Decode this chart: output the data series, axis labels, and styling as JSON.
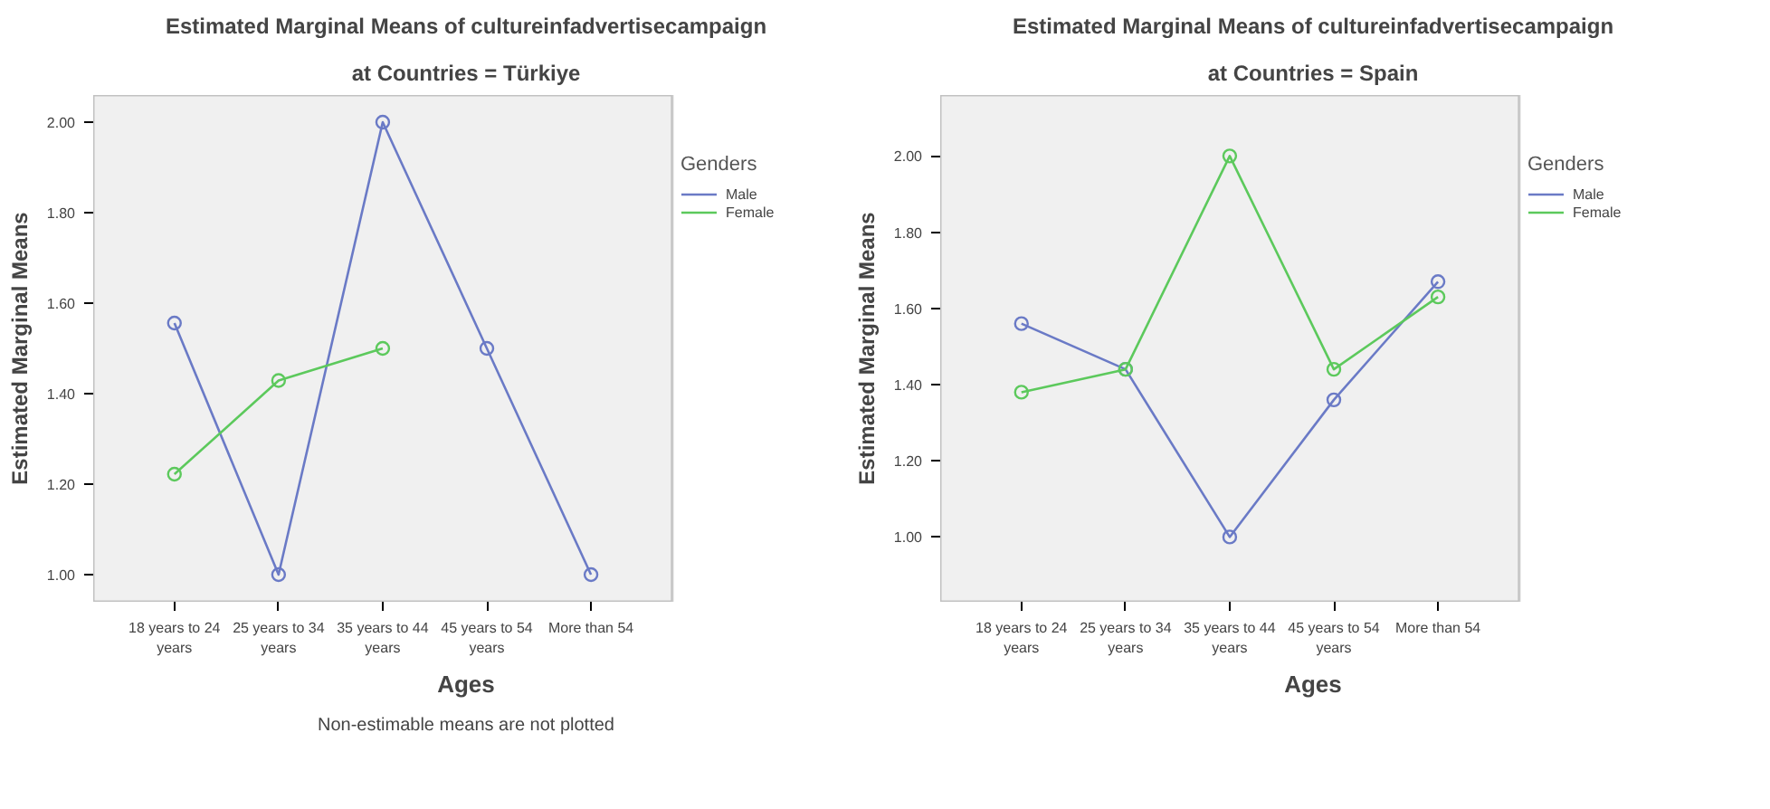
{
  "chart_data": [
    {
      "type": "line",
      "title": "Estimated Marginal Means of cultureinfadvertisecampaign",
      "subtitle": "at Countries = Türkiye",
      "xlabel": "Ages",
      "ylabel": "Estimated Marginal Means",
      "legend_title": "Genders",
      "categories": [
        "18 years to 24\nyears",
        "25 years to 34\nyears",
        "35 years to 44\nyears",
        "45 years to 54\nyears",
        "More than 54"
      ],
      "series": [
        {
          "name": "Male",
          "color": "#6a7ac6",
          "values": [
            1.556,
            1.0,
            2.0,
            1.5,
            1.0
          ]
        },
        {
          "name": "Female",
          "color": "#5cc95c",
          "values": [
            1.222,
            1.429,
            1.5,
            null,
            null
          ]
        }
      ],
      "ylim": [
        0.94,
        2.06
      ],
      "yticks": [
        {
          "value": 1.0,
          "label": "1.00"
        },
        {
          "value": 1.2,
          "label": "1.20"
        },
        {
          "value": 1.4,
          "label": "1.40"
        },
        {
          "value": 1.6,
          "label": "1.60"
        },
        {
          "value": 1.8,
          "label": "1.80"
        },
        {
          "value": 2.0,
          "label": "2.00"
        }
      ],
      "marker": "circle",
      "grid": false,
      "legend": "right",
      "annotations": [
        "Non-estimable means are not plotted"
      ]
    },
    {
      "type": "line",
      "title": "Estimated Marginal Means of cultureinfadvertisecampaign",
      "subtitle": "at Countries = Spain",
      "xlabel": "Ages",
      "ylabel": "Estimated Marginal Means",
      "legend_title": "Genders",
      "categories": [
        "18 years to 24\nyears",
        "25 years to 34\nyears",
        "35 years to 44\nyears",
        "45 years to 54\nyears",
        "More than 54"
      ],
      "series": [
        {
          "name": "Male",
          "color": "#6a7ac6",
          "values": [
            1.56,
            1.44,
            1.0,
            1.36,
            1.67
          ]
        },
        {
          "name": "Female",
          "color": "#5cc95c",
          "values": [
            1.38,
            1.44,
            2.0,
            1.44,
            1.63
          ]
        }
      ],
      "ylim": [
        0.83,
        2.16
      ],
      "yticks": [
        {
          "value": 1.0,
          "label": "1.00"
        },
        {
          "value": 1.2,
          "label": "1.20"
        },
        {
          "value": 1.4,
          "label": "1.40"
        },
        {
          "value": 1.6,
          "label": "1.60"
        },
        {
          "value": 1.8,
          "label": "1.80"
        },
        {
          "value": 2.0,
          "label": "2.00"
        }
      ],
      "marker": "circle",
      "grid": false,
      "legend": "right"
    }
  ]
}
